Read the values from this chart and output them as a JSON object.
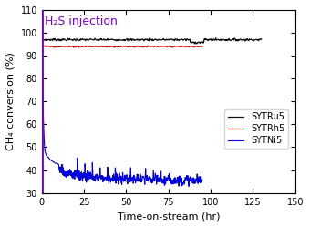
{
  "title": "",
  "xlabel": "Time-on-stream (hr)",
  "ylabel": "CH₄ conversion (%)",
  "xlim": [
    0,
    150
  ],
  "ylim": [
    30,
    110
  ],
  "xticks": [
    0,
    25,
    50,
    75,
    100,
    125,
    150
  ],
  "yticks": [
    30,
    40,
    50,
    60,
    70,
    80,
    90,
    100,
    110
  ],
  "h2s_x": 0.5,
  "h2s_label": "H₂S injection",
  "h2s_color": "#7B00CC",
  "h2s_fontsize": 9,
  "legend_labels": [
    "SYTRu5",
    "SYTRh5",
    "SYTNi5"
  ],
  "line_colors": [
    "#111111",
    "#cc0000",
    "#0000dd"
  ],
  "background_color": "#ffffff",
  "figsize": [
    3.4,
    2.49
  ],
  "dpi": 100
}
